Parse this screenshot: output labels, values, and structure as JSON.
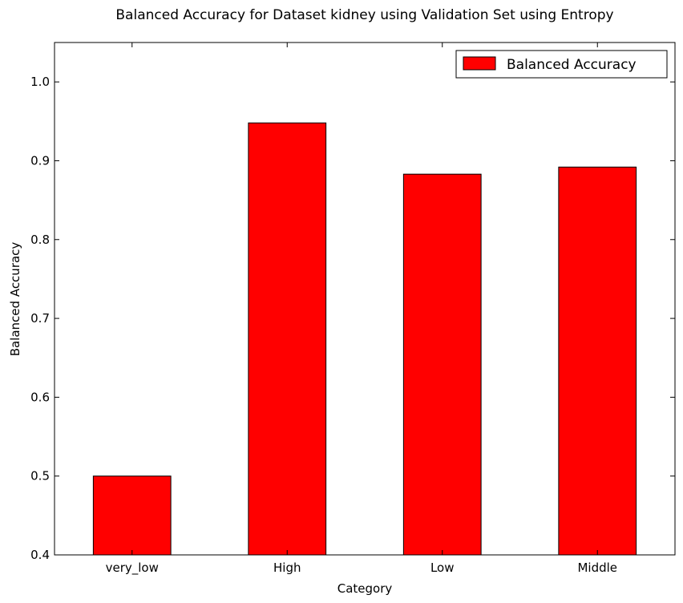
{
  "chart_data": {
    "type": "bar",
    "title": "Balanced Accuracy for Dataset kidney using Validation Set using Entropy",
    "xlabel": "Category",
    "ylabel": "Balanced Accuracy",
    "categories": [
      "very_low",
      "High",
      "Low",
      "Middle"
    ],
    "series": [
      {
        "name": "Balanced Accuracy",
        "values": [
          0.5,
          0.948,
          0.883,
          0.892
        ],
        "color": "#ff0000"
      }
    ],
    "ylim": [
      0.4,
      1.05
    ],
    "yticks": [
      "0.4",
      "0.5",
      "0.6",
      "0.7",
      "0.8",
      "0.9",
      "1.0"
    ],
    "grid": false,
    "legend_position": "top-right"
  }
}
